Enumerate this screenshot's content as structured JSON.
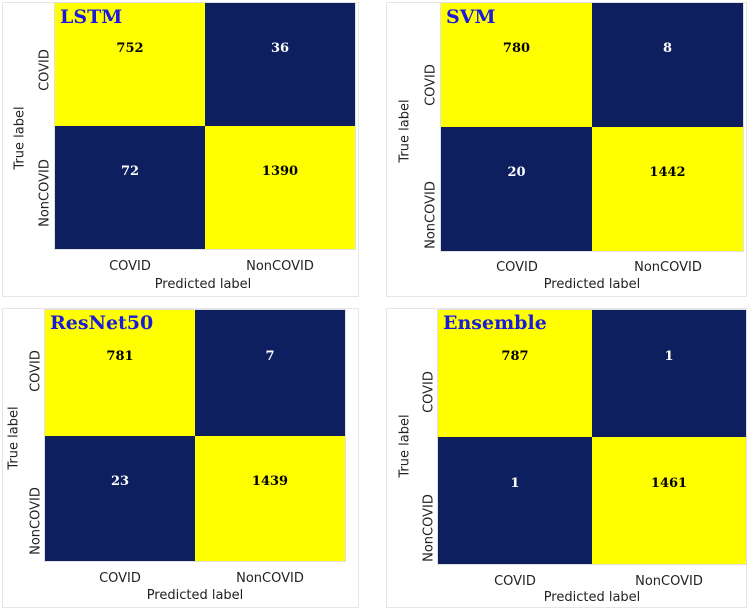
{
  "chart_data": [
    {
      "type": "heatmap",
      "title": "LSTM",
      "xlabel": "Predicted label",
      "ylabel": "True label",
      "x_tick_labels": [
        "COVID",
        "NonCOVID"
      ],
      "y_tick_labels": [
        "COVID",
        "NonCOVID"
      ],
      "matrix": [
        [
          752,
          36
        ],
        [
          72,
          1390
        ]
      ],
      "colors": {
        "high": "#ffff00",
        "low": "#0d1f5e"
      }
    },
    {
      "type": "heatmap",
      "title": "SVM",
      "xlabel": "Predicted label",
      "ylabel": "True label",
      "x_tick_labels": [
        "COVID",
        "NonCOVID"
      ],
      "y_tick_labels": [
        "COVID",
        "NonCOVID"
      ],
      "matrix": [
        [
          780,
          8
        ],
        [
          20,
          1442
        ]
      ],
      "colors": {
        "high": "#ffff00",
        "low": "#0d1f5e"
      }
    },
    {
      "type": "heatmap",
      "title": "ResNet50",
      "xlabel": "Predicted label",
      "ylabel": "True label",
      "x_tick_labels": [
        "COVID",
        "NonCOVID"
      ],
      "y_tick_labels": [
        "COVID",
        "NonCOVID"
      ],
      "matrix": [
        [
          781,
          7
        ],
        [
          23,
          1439
        ]
      ],
      "colors": {
        "high": "#ffff00",
        "low": "#0d1f5e"
      }
    },
    {
      "type": "heatmap",
      "title": "Ensemble",
      "xlabel": "Predicted label",
      "ylabel": "True label",
      "x_tick_labels": [
        "COVID",
        "NonCOVID"
      ],
      "y_tick_labels": [
        "COVID",
        "NonCOVID"
      ],
      "matrix": [
        [
          787,
          1
        ],
        [
          1,
          1461
        ]
      ],
      "colors": {
        "high": "#ffff00",
        "low": "#0d1f5e"
      }
    }
  ]
}
